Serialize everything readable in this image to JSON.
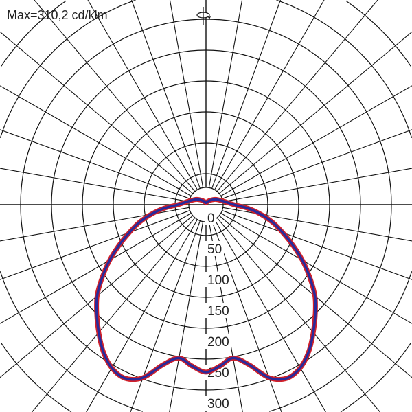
{
  "chart_data": {
    "type": "polar",
    "title": "Max=310,2 cd/klm",
    "unit": "cd/klm",
    "radial_ticks": [
      0,
      50,
      100,
      150,
      200,
      250,
      300
    ],
    "radial_max": 350,
    "angle_step_deg": 10,
    "grid": true,
    "series": [
      {
        "color": "#2a2a9a",
        "outline_color": "#d0202a",
        "gamma_deg": [
          0,
          5,
          10,
          15,
          20,
          25,
          30,
          35,
          40,
          45,
          50,
          55,
          60,
          65,
          70,
          75,
          80,
          85,
          90,
          100,
          110,
          120,
          135,
          150,
          165,
          180
        ],
        "values": [
          271,
          262,
          252,
          268,
          298,
          310,
          305,
          290,
          270,
          250,
          230,
          205,
          180,
          155,
          132,
          112,
          90,
          68,
          45,
          30,
          22,
          17,
          10,
          6,
          4,
          3
        ],
        "symmetric": true
      }
    ]
  },
  "icons": {
    "rotation": "rotation-symmetry-icon"
  }
}
